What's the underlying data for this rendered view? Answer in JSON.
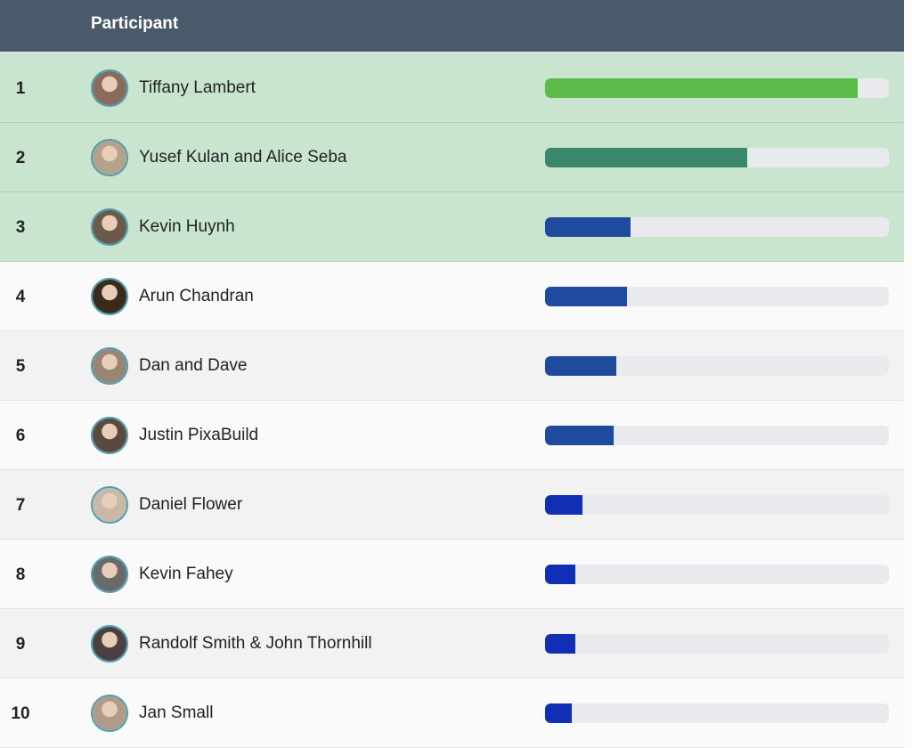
{
  "header": {
    "participant_label": "Participant"
  },
  "colors": {
    "gold": "#5aba4a",
    "silver": "#3a876a",
    "mid": "#1f4a9e",
    "low": "#102fb5"
  },
  "participants": [
    {
      "rank": "1",
      "name": "Tiffany Lambert",
      "progress": 0.909,
      "tier": "gold",
      "style": "top",
      "avatar": "#8a6a5c"
    },
    {
      "rank": "2",
      "name": "Yusef Kulan and Alice Seba",
      "progress": 0.588,
      "tier": "silver",
      "style": "top",
      "avatar": "#b3a28c"
    },
    {
      "rank": "3",
      "name": "Kevin Huynh",
      "progress": 0.249,
      "tier": "mid",
      "style": "top",
      "avatar": "#6b5a4a"
    },
    {
      "rank": "4",
      "name": "Arun Chandran",
      "progress": 0.238,
      "tier": "mid",
      "style": "even",
      "avatar": "#3a2a1a"
    },
    {
      "rank": "5",
      "name": "Dan and Dave",
      "progress": 0.207,
      "tier": "mid",
      "style": "odd",
      "avatar": "#9a8474"
    },
    {
      "rank": "6",
      "name": "Justin PixaBuild",
      "progress": 0.199,
      "tier": "mid",
      "style": "even",
      "avatar": "#5a4a3e"
    },
    {
      "rank": "7",
      "name": "Daniel Flower",
      "progress": 0.109,
      "tier": "low",
      "style": "odd",
      "avatar": "#c8b8a8"
    },
    {
      "rank": "8",
      "name": "Kevin Fahey",
      "progress": 0.088,
      "tier": "low",
      "style": "even",
      "avatar": "#6a6a6a"
    },
    {
      "rank": "9",
      "name": "Randolf Smith & John Thornhill",
      "progress": 0.088,
      "tier": "low",
      "style": "odd",
      "avatar": "#4a4040"
    },
    {
      "rank": "10",
      "name": "Jan Small",
      "progress": 0.078,
      "tier": "low",
      "style": "even",
      "avatar": "#b09a88"
    }
  ]
}
